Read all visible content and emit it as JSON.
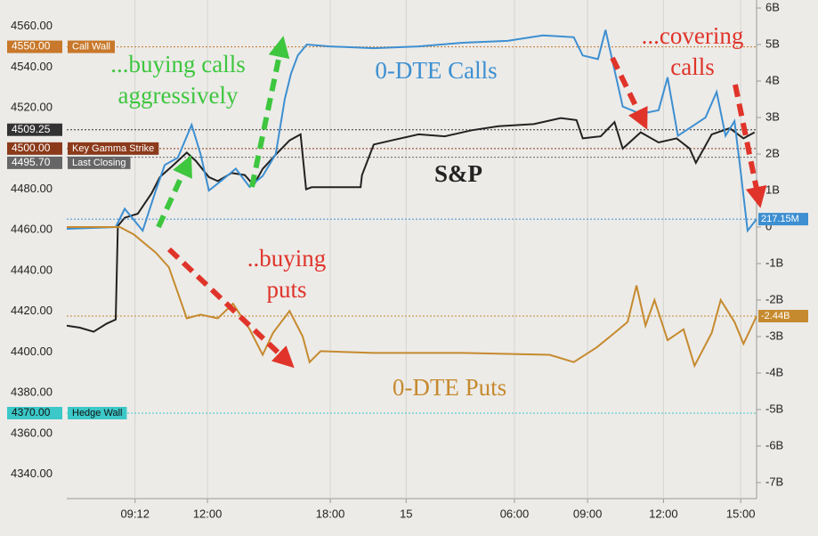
{
  "chart_data": {
    "type": "line",
    "xlim": [
      0,
      100
    ],
    "xticks": [
      {
        "value": 9.9,
        "label": "09:12"
      },
      {
        "value": 20.4,
        "label": "12:00"
      },
      {
        "value": 38.2,
        "label": "18:00"
      },
      {
        "value": 49.2,
        "label": "15"
      },
      {
        "value": 64.9,
        "label": "06:00"
      },
      {
        "value": 75.5,
        "label": "09:00"
      },
      {
        "value": 86.5,
        "label": "12:00"
      },
      {
        "value": 97.7,
        "label": "15:00"
      }
    ],
    "ylim": [
      4328,
      4573
    ],
    "yticks": [
      {
        "value": 4340,
        "label": "4340.00"
      },
      {
        "value": 4360,
        "label": "4360.00"
      },
      {
        "value": 4380,
        "label": "4380.00"
      },
      {
        "value": 4400,
        "label": "4400.00"
      },
      {
        "value": 4420,
        "label": "4420.00"
      },
      {
        "value": 4440,
        "label": "4440.00"
      },
      {
        "value": 4460,
        "label": "4460.00"
      },
      {
        "value": 4480,
        "label": "4480.00"
      },
      {
        "value": 4500,
        "label": "4500.00"
      },
      {
        "value": 4520,
        "label": "4520.00"
      },
      {
        "value": 4540,
        "label": "4540.00"
      },
      {
        "value": 4560,
        "label": "4560.00"
      }
    ],
    "y2lim": [
      -7.44,
      6.22
    ],
    "y2ticks": [
      {
        "value": -7,
        "label": "-7B"
      },
      {
        "value": -6,
        "label": "-6B"
      },
      {
        "value": -5,
        "label": "-5B"
      },
      {
        "value": -4,
        "label": "-4B"
      },
      {
        "value": -3,
        "label": "-3B"
      },
      {
        "value": -2,
        "label": "-2B"
      },
      {
        "value": -1,
        "label": "-1B"
      },
      0,
      {
        "value": 1,
        "label": "1B"
      },
      {
        "value": 2,
        "label": "2B"
      },
      {
        "value": 3,
        "label": "3B"
      },
      {
        "value": 4,
        "label": "4B"
      },
      {
        "value": 5,
        "label": "5B"
      },
      {
        "value": 6,
        "label": "6B"
      }
    ],
    "xgrid": true,
    "reference_lines": [
      {
        "value": 4550,
        "label": "4550.00",
        "name": "Call Wall",
        "color": "#c8782a"
      },
      {
        "value": 4509.25,
        "label": "4509.25",
        "color": "#333333"
      },
      {
        "value": 4500,
        "label": "4500.00",
        "name": "Key Gamma Strike",
        "color": "#8b3a1a"
      },
      {
        "value": 4495.7,
        "label": "4495.70",
        "name": "Last Closing",
        "color": "#666666"
      },
      {
        "value": 4370,
        "label": "4370.00",
        "name": "Hedge Wall",
        "color": "#3cc8c8"
      }
    ],
    "series": [
      {
        "name": "S&P",
        "color": "#222222",
        "x": [
          0,
          1.9,
          3.9,
          5.8,
          7.1,
          7.4,
          8.4,
          10.3,
          12.3,
          13.5,
          15.5,
          17.4,
          18.7,
          20.6,
          21.9,
          23.9,
          25.8,
          27.1,
          28.4,
          30.3,
          32.3,
          33.9,
          34.7,
          35.5,
          42.6,
          42.8,
          44.5,
          47.1,
          51,
          54.8,
          58.7,
          62.6,
          67.7,
          71.6,
          73.9,
          74.8,
          77.4,
          79.4,
          80.6,
          83.2,
          85.8,
          88.4,
          90.3,
          91.2,
          93.5,
          96.1,
          98.1,
          99.7
        ],
        "values": [
          4413,
          4412,
          4410,
          4414,
          4416,
          4462,
          4466,
          4468,
          4478,
          4486,
          4492,
          4498,
          4494,
          4486,
          4484,
          4488,
          4487,
          4482,
          4490,
          4497,
          4504,
          4507,
          4480,
          4481,
          4481,
          4487,
          4502,
          4504,
          4507,
          4506,
          4509,
          4511,
          4512,
          4515,
          4514,
          4505,
          4506,
          4513,
          4500,
          4508,
          4503,
          4505,
          4500,
          4493,
          4507,
          4510,
          4505,
          4508
        ]
      },
      {
        "name": "0-DTE Calls",
        "color": "#3d8fd1",
        "axis": "y2",
        "end_label": "217.15M",
        "x": [
          0,
          7.1,
          8.4,
          11,
          12.9,
          14.2,
          16.1,
          18.1,
          19.4,
          20.6,
          22.6,
          24.5,
          26.5,
          28.4,
          30.3,
          31.6,
          32.5,
          33.5,
          34.8,
          38.1,
          44.5,
          51,
          57.4,
          63.9,
          69,
          73.5,
          74.8,
          77,
          78.1,
          79.4,
          80.6,
          83.2,
          85.8,
          87.1,
          88.6,
          91,
          92.6,
          94.2,
          95.5,
          96.8,
          97.7,
          98.7,
          100
        ],
        "values": [
          -0.05,
          0,
          0.5,
          -0.1,
          1.0,
          1.7,
          1.9,
          2.8,
          2.0,
          1.0,
          1.3,
          1.6,
          1.1,
          1.4,
          2.0,
          3.5,
          4.2,
          4.7,
          5.0,
          4.95,
          4.9,
          4.95,
          5.05,
          5.1,
          5.25,
          5.2,
          4.7,
          4.6,
          5.4,
          4.3,
          3.3,
          3.1,
          3.2,
          4.1,
          2.5,
          2.8,
          3.0,
          3.7,
          2.5,
          2.9,
          1.5,
          -0.1,
          0.21715
        ]
      },
      {
        "name": "0-DTE Puts",
        "color": "#c68a2e",
        "axis": "y2",
        "end_label": "-2.44B",
        "x": [
          0,
          7.7,
          9.7,
          12.9,
          14.8,
          16.1,
          17.4,
          19.4,
          21.9,
          24.1,
          26.5,
          28.4,
          29.9,
          32.3,
          34.2,
          35.2,
          36.8,
          44.5,
          57.4,
          70,
          73.5,
          76.8,
          79.4,
          81.3,
          82.6,
          83.9,
          85.2,
          87.1,
          89.4,
          91,
          93.5,
          94.8,
          96.8,
          98.1,
          100
        ],
        "values": [
          0,
          0,
          -0.2,
          -0.7,
          -1.1,
          -1.8,
          -2.5,
          -2.4,
          -2.5,
          -2.1,
          -2.8,
          -3.5,
          -2.9,
          -2.3,
          -3.0,
          -3.7,
          -3.4,
          -3.45,
          -3.45,
          -3.5,
          -3.7,
          -3.3,
          -2.9,
          -2.6,
          -1.6,
          -2.7,
          -2.0,
          -3.1,
          -2.8,
          -3.8,
          -2.9,
          -2.0,
          -2.6,
          -3.2,
          -2.44
        ]
      }
    ],
    "annotations": [
      {
        "lines": [
          "...buying calls",
          "aggressively"
        ],
        "color": "#3ec63e"
      },
      {
        "lines": [
          "...covering",
          "calls"
        ],
        "color": "#e0342a"
      },
      {
        "lines": [
          "..buying",
          "puts"
        ],
        "color": "#e0342a"
      }
    ]
  }
}
